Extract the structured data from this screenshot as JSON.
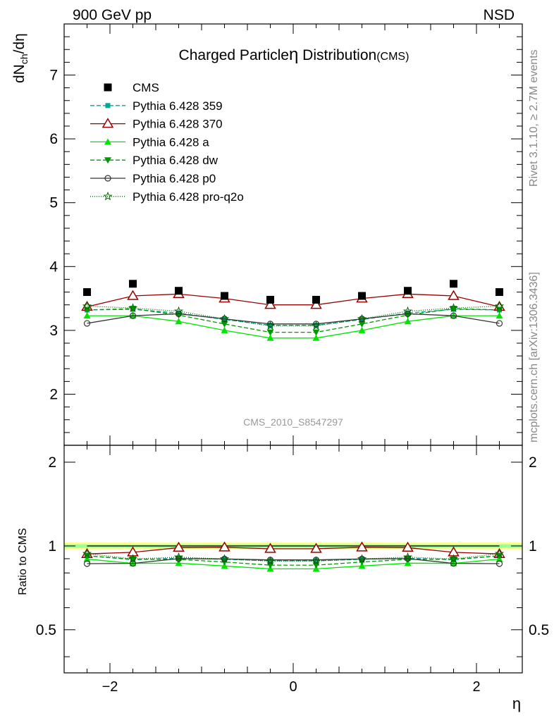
{
  "header": {
    "energy_label": "900 GeV pp",
    "process_label": "NSD"
  },
  "side_labels": {
    "rivet": "Rivet 3.1.10, ≥ 2.7M events",
    "mcplots": "mcplots.cern.ch [arXiv:1306.3436]"
  },
  "colors": {
    "cms": "#000000",
    "p359": "#00a88f",
    "p370": "#990000",
    "pa": "#00e600",
    "pdw": "#009900",
    "pp0": "#333333",
    "pq2o": "#006600",
    "band_yellow": "#ffff88",
    "band_green": "#99ff99"
  },
  "chart_data": {
    "type": "scatter",
    "title": "Charged Particle",
    "title_symbol": "η",
    "title_rest": " Distribution",
    "title_suffix": "(CMS)",
    "analysis_tag": "CMS_2010_S8547297",
    "xlabel": "η",
    "ylabel": "dN_ch/dη",
    "ylabel_main": "dN",
    "ylabel_sub": "ch",
    "ylabel_tail": "/dη",
    "ratio_ylabel": "Ratio to CMS",
    "xlim": [
      -2.5,
      2.5
    ],
    "ylim": [
      1.2,
      7.8
    ],
    "ratio_ylim": [
      0.35,
      2.3
    ],
    "x_ticks": [
      -2,
      0,
      2
    ],
    "x_tick_labels": [
      "−2",
      "0",
      "2"
    ],
    "y_ticks": [
      2,
      3,
      4,
      5,
      6,
      7
    ],
    "y_tick_labels": [
      "2",
      "3",
      "4",
      "5",
      "6",
      "7"
    ],
    "ratio_ticks": [
      0.5,
      1,
      2
    ],
    "ratio_tick_labels": [
      "0.5",
      "1",
      "2"
    ],
    "x": [
      -2.25,
      -1.75,
      -1.25,
      -0.75,
      -0.25,
      0.25,
      0.75,
      1.25,
      1.75,
      2.25
    ],
    "data": {
      "name": "CMS",
      "values": [
        3.6,
        3.73,
        3.62,
        3.54,
        3.48,
        3.48,
        3.54,
        3.62,
        3.73,
        3.6
      ],
      "band_outer": [
        0.11,
        0.11,
        0.1,
        0.1,
        0.1,
        0.1,
        0.1,
        0.1,
        0.11,
        0.11
      ],
      "band_inner": [
        0.05,
        0.05,
        0.05,
        0.05,
        0.05,
        0.05,
        0.05,
        0.05,
        0.05,
        0.05
      ]
    },
    "series": [
      {
        "name": "Pythia 6.428 359",
        "key": "p359",
        "values": [
          3.32,
          3.33,
          3.27,
          3.17,
          3.08,
          3.08,
          3.17,
          3.27,
          3.33,
          3.32
        ],
        "marker": "square-small",
        "dash": "6,3"
      },
      {
        "name": "Pythia 6.428 370",
        "key": "p370",
        "values": [
          3.37,
          3.54,
          3.57,
          3.5,
          3.4,
          3.4,
          3.5,
          3.57,
          3.54,
          3.37
        ],
        "marker": "triangle-open",
        "dash": ""
      },
      {
        "name": "Pythia 6.428 a",
        "key": "pa",
        "values": [
          3.23,
          3.23,
          3.14,
          3.0,
          2.88,
          2.88,
          3.0,
          3.14,
          3.23,
          3.23
        ],
        "marker": "triangle",
        "dash": ""
      },
      {
        "name": "Pythia 6.428 dw",
        "key": "pdw",
        "values": [
          3.32,
          3.34,
          3.24,
          3.1,
          2.97,
          2.97,
          3.1,
          3.24,
          3.34,
          3.32
        ],
        "marker": "triangle-down",
        "dash": "6,3"
      },
      {
        "name": "Pythia 6.428 p0",
        "key": "pp0",
        "values": [
          3.11,
          3.23,
          3.26,
          3.18,
          3.1,
          3.1,
          3.18,
          3.26,
          3.23,
          3.11
        ],
        "marker": "circle-open",
        "dash": ""
      },
      {
        "name": "Pythia 6.428 pro-q2o",
        "key": "pq2o",
        "values": [
          3.38,
          3.35,
          3.3,
          3.18,
          3.07,
          3.07,
          3.18,
          3.3,
          3.35,
          3.38
        ],
        "marker": "star",
        "dash": "1,2"
      }
    ],
    "legend_position": "top-left",
    "grid": false
  }
}
